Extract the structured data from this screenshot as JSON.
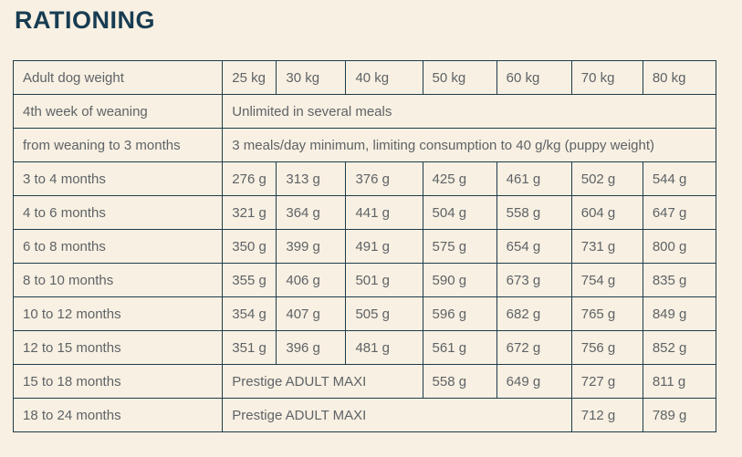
{
  "page": {
    "title": "RATIONING"
  },
  "colors": {
    "background": "#f8f0e2",
    "table_border": "#1e3c4b",
    "cell_text": "#5e6367",
    "title_text": "#173c52"
  },
  "chart_data": {
    "type": "table",
    "title": "RATIONING",
    "header": {
      "label": "Adult dog weight",
      "weights": [
        "25 kg",
        "30 kg",
        "40 kg",
        "50 kg",
        "60 kg",
        "70 kg",
        "80 kg"
      ]
    },
    "rows": [
      {
        "label": "4th week of weaning",
        "merged": "Unlimited in several meals",
        "merged_span": 7,
        "values": []
      },
      {
        "label": "from weaning to 3 months",
        "merged": "3 meals/day minimum, limiting consumption to 40 g/kg (puppy weight)",
        "merged_span": 7,
        "values": []
      },
      {
        "label": "3 to 4 months",
        "values": [
          "276 g",
          "313 g",
          "376 g",
          "425 g",
          "461 g",
          "502 g",
          "544 g"
        ]
      },
      {
        "label": "4 to 6 months",
        "values": [
          "321 g",
          "364 g",
          "441 g",
          "504 g",
          "558 g",
          "604 g",
          "647 g"
        ]
      },
      {
        "label": "6 to 8 months",
        "values": [
          "350 g",
          "399 g",
          "491 g",
          "575 g",
          "654 g",
          "731 g",
          "800 g"
        ]
      },
      {
        "label": "8 to 10 months",
        "values": [
          "355 g",
          "406 g",
          "501 g",
          "590 g",
          "673 g",
          "754 g",
          "835 g"
        ]
      },
      {
        "label": "10 to 12 months",
        "values": [
          "354 g",
          "407 g",
          "505 g",
          "596 g",
          "682 g",
          "765 g",
          "849 g"
        ]
      },
      {
        "label": "12 to 15 months",
        "values": [
          "351 g",
          "396 g",
          "481 g",
          "561 g",
          "672 g",
          "756 g",
          "852 g"
        ]
      },
      {
        "label": "15 to 18 months",
        "merged": "Prestige ADULT MAXI",
        "merged_span": 3,
        "values": [
          "558 g",
          "649 g",
          "727 g",
          "811 g"
        ]
      },
      {
        "label": "18 to 24 months",
        "merged": "Prestige ADULT MAXI",
        "merged_span": 5,
        "values": [
          "712 g",
          "789 g"
        ]
      }
    ]
  }
}
